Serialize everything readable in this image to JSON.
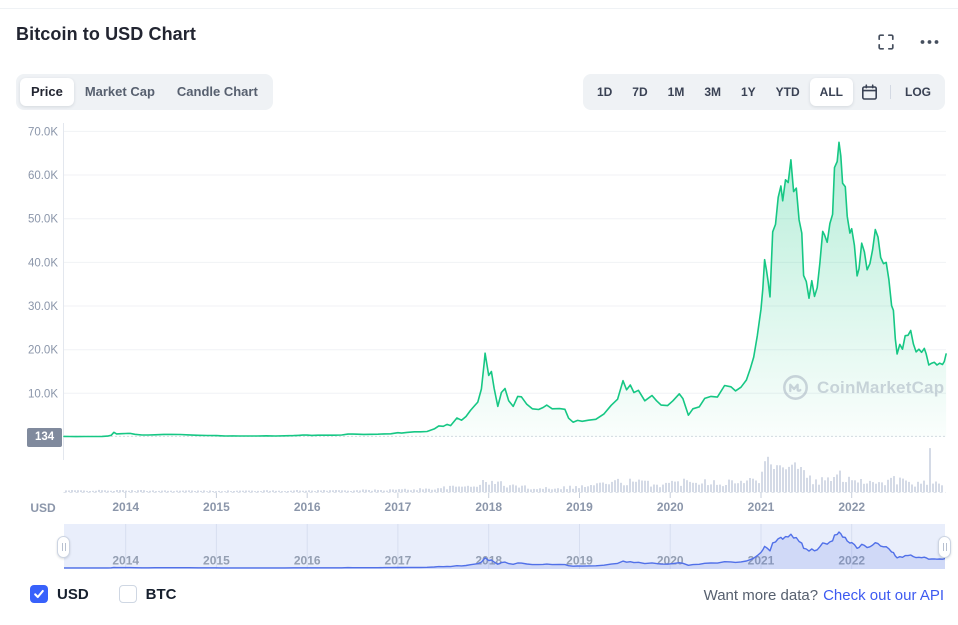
{
  "header": {
    "title": "Bitcoin to USD Chart"
  },
  "icons": {
    "fullscreen": "fullscreen-icon",
    "more": "ellipsis-icon",
    "calendar": "calendar-icon",
    "checkbox_check": "check-icon",
    "navigator_handles": "grip-icon",
    "watermark_logo": "coinmarketcap-logo-icon"
  },
  "toolbar": {
    "view_tabs": [
      {
        "label": "Price",
        "active": true
      },
      {
        "label": "Market Cap",
        "active": false
      },
      {
        "label": "Candle Chart",
        "active": false
      }
    ],
    "range_tabs": [
      {
        "label": "1D",
        "active": false
      },
      {
        "label": "7D",
        "active": false
      },
      {
        "label": "1M",
        "active": false
      },
      {
        "label": "3M",
        "active": false
      },
      {
        "label": "1Y",
        "active": false
      },
      {
        "label": "YTD",
        "active": false
      },
      {
        "label": "ALL",
        "active": true
      }
    ],
    "log_label": "LOG"
  },
  "axis": {
    "y_unit_label": "USD",
    "first_value_badge": "134"
  },
  "watermark": {
    "text": "CoinMarketCap"
  },
  "footer": {
    "currency_toggles": [
      {
        "label": "USD",
        "checked": true
      },
      {
        "label": "BTC",
        "checked": false
      }
    ],
    "prompt": "Want more data?",
    "link_label": "Check out our API"
  },
  "colors": {
    "price_line": "#16c784",
    "price_fill": "#16c784",
    "volume_bars": "#ccd4e2",
    "navigator_line": "#5170e8",
    "navigator_bg": "#e9eefb",
    "accent_blue": "#3861fb",
    "badge_bg": "#808a9d",
    "axis_text": "#8b96aa"
  },
  "chart_data": {
    "type": "line",
    "title": "Bitcoin to USD Chart",
    "legend_position": "none",
    "grid": true,
    "y_axis": {
      "unit": "USD",
      "range": [
        0,
        73000
      ]
    },
    "y_ticks": [
      {
        "label": "70.0K",
        "value": 70000
      },
      {
        "label": "60.0K",
        "value": 60000
      },
      {
        "label": "50.0K",
        "value": 50000
      },
      {
        "label": "40.0K",
        "value": 40000
      },
      {
        "label": "30.0K",
        "value": 30000
      },
      {
        "label": "20.0K",
        "value": 20000
      },
      {
        "label": "10.0K",
        "value": 10000
      }
    ],
    "x_ticks": [
      2014,
      2015,
      2016,
      2017,
      2018,
      2019,
      2020,
      2021,
      2022
    ],
    "x_range_years": [
      2013.32,
      2023.04
    ],
    "first_value": 134,
    "price_series": {
      "name": "BTC/USD price",
      "color": "#16c784",
      "points": [
        [
          2013.32,
          134
        ],
        [
          2013.38,
          112
        ],
        [
          2013.45,
          96
        ],
        [
          2013.55,
          104
        ],
        [
          2013.65,
          118
        ],
        [
          2013.74,
          140
        ],
        [
          2013.8,
          205
        ],
        [
          2013.84,
          380
        ],
        [
          2013.87,
          1080
        ],
        [
          2013.9,
          700
        ],
        [
          2013.95,
          760
        ],
        [
          2014.0,
          805
        ],
        [
          2014.05,
          830
        ],
        [
          2014.1,
          620
        ],
        [
          2014.18,
          460
        ],
        [
          2014.25,
          450
        ],
        [
          2014.32,
          500
        ],
        [
          2014.42,
          590
        ],
        [
          2014.5,
          600
        ],
        [
          2014.6,
          580
        ],
        [
          2014.7,
          480
        ],
        [
          2014.8,
          380
        ],
        [
          2014.9,
          350
        ],
        [
          2015.0,
          315
        ],
        [
          2015.05,
          270
        ],
        [
          2015.1,
          220
        ],
        [
          2015.18,
          245
        ],
        [
          2015.25,
          235
        ],
        [
          2015.35,
          240
        ],
        [
          2015.45,
          235
        ],
        [
          2015.55,
          265
        ],
        [
          2015.65,
          230
        ],
        [
          2015.75,
          265
        ],
        [
          2015.85,
          315
        ],
        [
          2015.9,
          360
        ],
        [
          2015.95,
          430
        ],
        [
          2016.0,
          435
        ],
        [
          2016.05,
          375
        ],
        [
          2016.12,
          415
        ],
        [
          2016.2,
          420
        ],
        [
          2016.3,
          417
        ],
        [
          2016.38,
          450
        ],
        [
          2016.45,
          670
        ],
        [
          2016.5,
          655
        ],
        [
          2016.55,
          650
        ],
        [
          2016.62,
          600
        ],
        [
          2016.7,
          610
        ],
        [
          2016.78,
          630
        ],
        [
          2016.85,
          700
        ],
        [
          2016.92,
          740
        ],
        [
          2017.0,
          985
        ],
        [
          2017.04,
          890
        ],
        [
          2017.1,
          1050
        ],
        [
          2017.18,
          1190
        ],
        [
          2017.25,
          1180
        ],
        [
          2017.32,
          1270
        ],
        [
          2017.4,
          1850
        ],
        [
          2017.45,
          2550
        ],
        [
          2017.5,
          2450
        ],
        [
          2017.54,
          2880
        ],
        [
          2017.58,
          2600
        ],
        [
          2017.65,
          4350
        ],
        [
          2017.7,
          3850
        ],
        [
          2017.75,
          4700
        ],
        [
          2017.8,
          6100
        ],
        [
          2017.85,
          7300
        ],
        [
          2017.88,
          8000
        ],
        [
          2017.92,
          11000
        ],
        [
          2017.95,
          17000
        ],
        [
          2017.96,
          19200
        ],
        [
          2018.0,
          14100
        ],
        [
          2018.03,
          15000
        ],
        [
          2018.06,
          11200
        ],
        [
          2018.1,
          7000
        ],
        [
          2018.14,
          10200
        ],
        [
          2018.18,
          11100
        ],
        [
          2018.22,
          8300
        ],
        [
          2018.27,
          7000
        ],
        [
          2018.32,
          9300
        ],
        [
          2018.36,
          9200
        ],
        [
          2018.42,
          7500
        ],
        [
          2018.48,
          6450
        ],
        [
          2018.55,
          6300
        ],
        [
          2018.6,
          6750
        ],
        [
          2018.64,
          7300
        ],
        [
          2018.7,
          6450
        ],
        [
          2018.78,
          6500
        ],
        [
          2018.84,
          6350
        ],
        [
          2018.88,
          4300
        ],
        [
          2018.93,
          3400
        ],
        [
          2018.98,
          3800
        ],
        [
          2019.03,
          3600
        ],
        [
          2019.1,
          3850
        ],
        [
          2019.18,
          4050
        ],
        [
          2019.27,
          5300
        ],
        [
          2019.35,
          7250
        ],
        [
          2019.42,
          8650
        ],
        [
          2019.48,
          12900
        ],
        [
          2019.52,
          10800
        ],
        [
          2019.56,
          11900
        ],
        [
          2019.6,
          10200
        ],
        [
          2019.65,
          10700
        ],
        [
          2019.72,
          8300
        ],
        [
          2019.8,
          9500
        ],
        [
          2019.85,
          8300
        ],
        [
          2019.9,
          7300
        ],
        [
          2019.97,
          7200
        ],
        [
          2020.03,
          8300
        ],
        [
          2020.1,
          9900
        ],
        [
          2020.14,
          8800
        ],
        [
          2020.2,
          5000
        ],
        [
          2020.25,
          6450
        ],
        [
          2020.32,
          6900
        ],
        [
          2020.38,
          8850
        ],
        [
          2020.45,
          9300
        ],
        [
          2020.52,
          9150
        ],
        [
          2020.6,
          11800
        ],
        [
          2020.67,
          11500
        ],
        [
          2020.72,
          10550
        ],
        [
          2020.78,
          11400
        ],
        [
          2020.84,
          13050
        ],
        [
          2020.88,
          15500
        ],
        [
          2020.92,
          18300
        ],
        [
          2020.96,
          23200
        ],
        [
          2021.0,
          29300
        ],
        [
          2021.02,
          33900
        ],
        [
          2021.04,
          40600
        ],
        [
          2021.06,
          38300
        ],
        [
          2021.08,
          35500
        ],
        [
          2021.1,
          32100
        ],
        [
          2021.13,
          47000
        ],
        [
          2021.16,
          48700
        ],
        [
          2021.19,
          54900
        ],
        [
          2021.22,
          57500
        ],
        [
          2021.24,
          54100
        ],
        [
          2021.27,
          58900
        ],
        [
          2021.3,
          58300
        ],
        [
          2021.33,
          63500
        ],
        [
          2021.36,
          56200
        ],
        [
          2021.39,
          57000
        ],
        [
          2021.42,
          49700
        ],
        [
          2021.45,
          46700
        ],
        [
          2021.47,
          37000
        ],
        [
          2021.5,
          35600
        ],
        [
          2021.53,
          31800
        ],
        [
          2021.56,
          35800
        ],
        [
          2021.59,
          32200
        ],
        [
          2021.62,
          34200
        ],
        [
          2021.65,
          39900
        ],
        [
          2021.68,
          47100
        ],
        [
          2021.7,
          46300
        ],
        [
          2021.73,
          44600
        ],
        [
          2021.76,
          48900
        ],
        [
          2021.79,
          51000
        ],
        [
          2021.81,
          61700
        ],
        [
          2021.84,
          63100
        ],
        [
          2021.86,
          67500
        ],
        [
          2021.88,
          64400
        ],
        [
          2021.9,
          58100
        ],
        [
          2021.93,
          57300
        ],
        [
          2021.95,
          50600
        ],
        [
          2021.98,
          46700
        ],
        [
          2022.0,
          47700
        ],
        [
          2022.03,
          43900
        ],
        [
          2022.06,
          36900
        ],
        [
          2022.08,
          38500
        ],
        [
          2022.11,
          44400
        ],
        [
          2022.14,
          42400
        ],
        [
          2022.17,
          38300
        ],
        [
          2022.2,
          39700
        ],
        [
          2022.23,
          42900
        ],
        [
          2022.26,
          47500
        ],
        [
          2022.29,
          45800
        ],
        [
          2022.32,
          41100
        ],
        [
          2022.35,
          39700
        ],
        [
          2022.38,
          40000
        ],
        [
          2022.41,
          36000
        ],
        [
          2022.44,
          30100
        ],
        [
          2022.46,
          29000
        ],
        [
          2022.48,
          22500
        ],
        [
          2022.5,
          19000
        ],
        [
          2022.53,
          21200
        ],
        [
          2022.56,
          20100
        ],
        [
          2022.59,
          23200
        ],
        [
          2022.62,
          23300
        ],
        [
          2022.65,
          24400
        ],
        [
          2022.68,
          21300
        ],
        [
          2022.71,
          19500
        ],
        [
          2022.74,
          20100
        ],
        [
          2022.77,
          19400
        ],
        [
          2022.8,
          20300
        ],
        [
          2022.82,
          19100
        ],
        [
          2022.85,
          16500
        ],
        [
          2022.88,
          16900
        ],
        [
          2022.91,
          17100
        ],
        [
          2022.94,
          16500
        ],
        [
          2022.97,
          16900
        ],
        [
          2023.0,
          16600
        ],
        [
          2023.02,
          17300
        ],
        [
          2023.04,
          19000
        ]
      ]
    },
    "volume_series": {
      "name": "24h volume (relative bar height)",
      "color": "#ccd4e2",
      "envelope_points": [
        [
          2013.32,
          2
        ],
        [
          2014.0,
          2
        ],
        [
          2015.0,
          1.5
        ],
        [
          2016.0,
          2
        ],
        [
          2016.8,
          2.5
        ],
        [
          2017.3,
          4
        ],
        [
          2017.7,
          7
        ],
        [
          2017.95,
          12
        ],
        [
          2018.05,
          13
        ],
        [
          2018.2,
          9
        ],
        [
          2018.5,
          5
        ],
        [
          2018.8,
          6
        ],
        [
          2019.0,
          7
        ],
        [
          2019.3,
          12
        ],
        [
          2019.5,
          14
        ],
        [
          2019.7,
          12
        ],
        [
          2019.9,
          10
        ],
        [
          2020.1,
          13
        ],
        [
          2020.25,
          17
        ],
        [
          2020.4,
          14
        ],
        [
          2020.6,
          13
        ],
        [
          2020.8,
          13
        ],
        [
          2020.95,
          17
        ],
        [
          2021.02,
          28
        ],
        [
          2021.05,
          50
        ],
        [
          2021.08,
          30
        ],
        [
          2021.15,
          26
        ],
        [
          2021.25,
          27
        ],
        [
          2021.35,
          30
        ],
        [
          2021.45,
          24
        ],
        [
          2021.55,
          15
        ],
        [
          2021.65,
          14
        ],
        [
          2021.75,
          17
        ],
        [
          2021.85,
          21
        ],
        [
          2021.95,
          20
        ],
        [
          2022.05,
          17
        ],
        [
          2022.15,
          14
        ],
        [
          2022.25,
          14
        ],
        [
          2022.35,
          13
        ],
        [
          2022.45,
          17
        ],
        [
          2022.55,
          14
        ],
        [
          2022.65,
          11
        ],
        [
          2022.75,
          10
        ],
        [
          2022.82,
          12
        ],
        [
          2022.85,
          46
        ],
        [
          2022.88,
          12
        ],
        [
          2022.97,
          8
        ],
        [
          2023.04,
          9
        ]
      ]
    },
    "navigator": {
      "shows": "same BTC/USD price series, miniature",
      "x_labels": [
        2014,
        2015,
        2016,
        2017,
        2018,
        2019,
        2020,
        2021,
        2022
      ]
    }
  }
}
